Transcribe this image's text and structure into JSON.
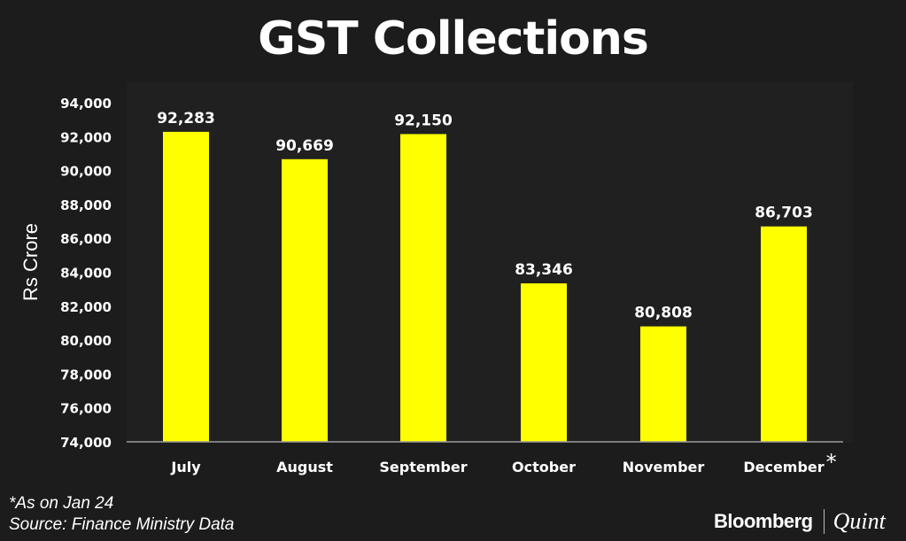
{
  "chart_data": {
    "type": "bar",
    "title": "GST Collections",
    "ylabel": "Rs Crore",
    "xlabel": "",
    "categories": [
      "July",
      "August",
      "September",
      "October",
      "November",
      "December"
    ],
    "category_markers": [
      "",
      "",
      "",
      "",
      "",
      "*"
    ],
    "values": [
      92283,
      90669,
      92150,
      83346,
      80808,
      86703
    ],
    "value_labels": [
      "92,283",
      "90,669",
      "92,150",
      "83,346",
      "80,808",
      "86,703"
    ],
    "ylim": [
      74000,
      94000
    ],
    "yticks": [
      74000,
      76000,
      78000,
      80000,
      82000,
      84000,
      86000,
      88000,
      90000,
      92000,
      94000
    ],
    "ytick_labels": [
      "74,000",
      "76,000",
      "78,000",
      "80,000",
      "82,000",
      "84,000",
      "86,000",
      "88,000",
      "90,000",
      "92,000",
      "94,000"
    ],
    "grid": false,
    "bar_color": "#ffff00",
    "background_color": "#1c1c1c",
    "text_color": "#ffffff"
  },
  "footnotes": {
    "note": "*As on Jan 24",
    "source": "Source: Finance Ministry Data"
  },
  "brand": {
    "name": "Bloomberg",
    "sub": "Quint"
  }
}
